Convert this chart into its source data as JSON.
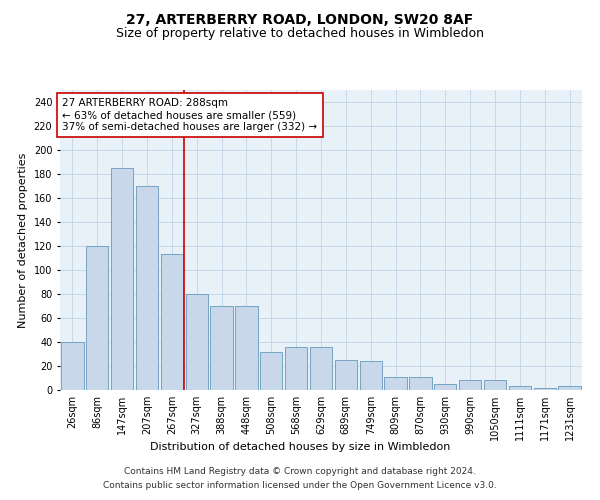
{
  "title": "27, ARTERBERRY ROAD, LONDON, SW20 8AF",
  "subtitle": "Size of property relative to detached houses in Wimbledon",
  "xlabel": "Distribution of detached houses by size in Wimbledon",
  "ylabel": "Number of detached properties",
  "categories": [
    "26sqm",
    "86sqm",
    "147sqm",
    "207sqm",
    "267sqm",
    "327sqm",
    "388sqm",
    "448sqm",
    "508sqm",
    "568sqm",
    "629sqm",
    "689sqm",
    "749sqm",
    "809sqm",
    "870sqm",
    "930sqm",
    "990sqm",
    "1050sqm",
    "1111sqm",
    "1171sqm",
    "1231sqm"
  ],
  "values": [
    40,
    120,
    185,
    170,
    113,
    80,
    70,
    70,
    32,
    36,
    36,
    25,
    24,
    11,
    11,
    5,
    8,
    8,
    3,
    2,
    3
  ],
  "bar_color": "#c8d8ea",
  "bar_edge_color": "#6699bb",
  "grid_color": "#c5d8ea",
  "background_color": "#e8f0f8",
  "red_line_x": 4.5,
  "annotation_box_text": "27 ARTERBERRY ROAD: 288sqm\n← 63% of detached houses are smaller (559)\n37% of semi-detached houses are larger (332) →",
  "annotation_box_color": "white",
  "annotation_box_edge_color": "#cc0000",
  "ylim": [
    0,
    250
  ],
  "yticks": [
    0,
    20,
    40,
    60,
    80,
    100,
    120,
    140,
    160,
    180,
    200,
    220,
    240
  ],
  "footer": "Contains HM Land Registry data © Crown copyright and database right 2024.\nContains public sector information licensed under the Open Government Licence v3.0.",
  "title_fontsize": 10,
  "subtitle_fontsize": 9,
  "axis_label_fontsize": 8,
  "tick_fontsize": 7,
  "annotation_fontsize": 7.5,
  "footer_fontsize": 6.5
}
